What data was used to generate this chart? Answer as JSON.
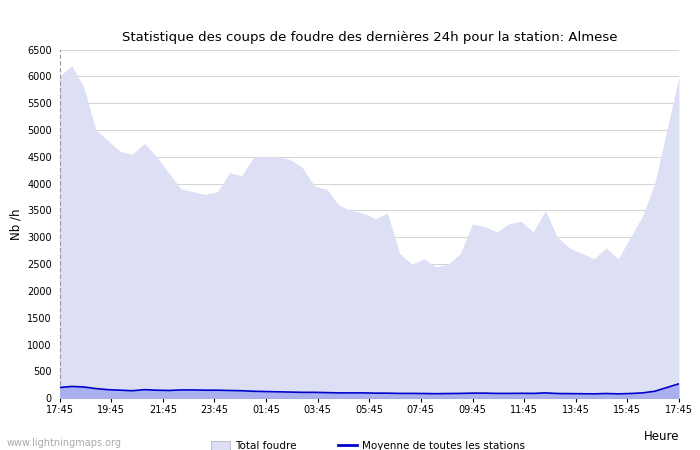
{
  "title": "Statistique des coups de foudre des dernières 24h pour la station: Almese",
  "xlabel": "Heure",
  "ylabel": "Nb /h",
  "ylim": [
    0,
    6500
  ],
  "yticks": [
    0,
    500,
    1000,
    1500,
    2000,
    2500,
    3000,
    3500,
    4000,
    4500,
    5000,
    5500,
    6000,
    6500
  ],
  "xtick_labels": [
    "17:45",
    "19:45",
    "21:45",
    "23:45",
    "01:45",
    "03:45",
    "05:45",
    "07:45",
    "09:45",
    "11:45",
    "13:45",
    "15:45",
    "17:45"
  ],
  "watermark": "www.lightningmaps.org",
  "bg_color": "#ffffff",
  "plot_bg_color": "#ffffff",
  "grid_color": "#cccccc",
  "total_fill_color": "#dde0f5",
  "almese_fill_color": "#aab0ef",
  "mean_line_color": "#0000cc",
  "total_foudre": [
    6000,
    6200,
    5800,
    5000,
    4800,
    4600,
    4550,
    4750,
    4500,
    4200,
    3900,
    3850,
    3800,
    3850,
    4200,
    4150,
    4500,
    4500,
    4500,
    4450,
    4300,
    3950,
    3900,
    3600,
    3500,
    3450,
    3350,
    3450,
    2700,
    2500,
    2600,
    2450,
    2500,
    2700,
    3250,
    3200,
    3100,
    3250,
    3300,
    3100,
    3500,
    3000,
    2800,
    2700,
    2600,
    2800,
    2600,
    3000,
    3400,
    4000,
    5000,
    6000
  ],
  "almese_foudre": [
    200,
    230,
    210,
    180,
    160,
    150,
    140,
    160,
    150,
    145,
    155,
    155,
    150,
    150,
    145,
    140,
    130,
    125,
    120,
    115,
    110,
    110,
    105,
    100,
    100,
    100,
    95,
    95,
    90,
    90,
    88,
    85,
    88,
    90,
    95,
    95,
    90,
    90,
    92,
    90,
    100,
    88,
    86,
    84,
    82,
    88,
    82,
    88,
    100,
    130,
    200,
    270
  ],
  "mean_line": [
    200,
    220,
    210,
    180,
    160,
    150,
    140,
    160,
    150,
    145,
    155,
    155,
    150,
    150,
    145,
    140,
    130,
    125,
    120,
    115,
    110,
    110,
    105,
    100,
    100,
    100,
    95,
    95,
    90,
    90,
    88,
    85,
    88,
    90,
    95,
    95,
    90,
    90,
    92,
    90,
    100,
    88,
    86,
    84,
    82,
    88,
    82,
    88,
    100,
    130,
    200,
    270
  ]
}
